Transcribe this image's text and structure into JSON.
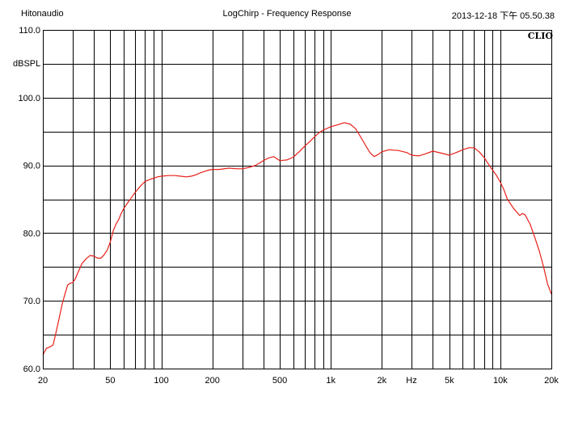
{
  "header": {
    "left": "Hitonaudio",
    "center": "LogChirp - Frequency Response",
    "right": "2013-12-18 下午 05.50.38"
  },
  "brand": {
    "label": "CLIO"
  },
  "colors": {
    "curve": "#e8201a",
    "grid": "#000000",
    "background": "#ffffff"
  },
  "chart_data": {
    "type": "line",
    "title": "LogChirp - Frequency Response",
    "xlabel": "Hz",
    "ylabel": "dBSPL",
    "xscale": "log",
    "xlim": [
      20,
      20000
    ],
    "ylim": [
      60,
      110
    ],
    "grid": true,
    "x_ticks": [
      {
        "value": 20,
        "label": "20"
      },
      {
        "value": 50,
        "label": "50"
      },
      {
        "value": 100,
        "label": "100"
      },
      {
        "value": 200,
        "label": "200"
      },
      {
        "value": 500,
        "label": "500"
      },
      {
        "value": 1000,
        "label": "1k"
      },
      {
        "value": 2000,
        "label": "2k"
      },
      {
        "value": 5000,
        "label": "5k"
      },
      {
        "value": 10000,
        "label": "10k"
      },
      {
        "value": 20000,
        "label": "20k"
      }
    ],
    "y_ticks": [
      {
        "value": 60,
        "label": "60.0"
      },
      {
        "value": 70,
        "label": "70.0"
      },
      {
        "value": 80,
        "label": "80.0"
      },
      {
        "value": 90,
        "label": "90.0"
      },
      {
        "value": 100,
        "label": "100.0"
      },
      {
        "value": 110,
        "label": "110.0"
      }
    ],
    "series": [
      {
        "x": [
          20,
          21,
          22,
          23,
          24,
          25,
          26,
          27,
          28,
          29,
          30,
          31,
          32,
          34,
          36,
          38,
          40,
          42,
          44,
          46,
          48,
          50,
          52,
          54,
          56,
          58,
          60,
          63,
          66,
          70,
          75,
          80,
          85,
          90,
          95,
          100,
          110,
          120,
          130,
          140,
          150,
          160,
          170,
          180,
          190,
          200,
          220,
          250,
          280,
          300,
          330,
          360,
          400,
          430,
          460,
          500,
          550,
          600,
          650,
          700,
          750,
          800,
          850,
          900,
          1000,
          1100,
          1200,
          1300,
          1400,
          1500,
          1600,
          1700,
          1800,
          1900,
          2000,
          2200,
          2500,
          2800,
          3000,
          3300,
          3600,
          4000,
          4500,
          5000,
          5500,
          6000,
          6500,
          7000,
          7500,
          8000,
          8500,
          9000,
          9500,
          10000,
          10500,
          11000,
          12000,
          13000,
          13500,
          14000,
          15000,
          16000,
          17000,
          18000,
          19000,
          20000
        ],
        "y": [
          62.0,
          63.0,
          63.2,
          63.5,
          65.5,
          67.5,
          69.5,
          71.0,
          72.3,
          72.6,
          72.7,
          73.2,
          74.0,
          75.5,
          76.2,
          76.7,
          76.6,
          76.3,
          76.3,
          76.8,
          77.5,
          78.7,
          80.3,
          81.3,
          82.0,
          82.9,
          83.6,
          84.4,
          85.1,
          86.0,
          86.9,
          87.6,
          87.9,
          88.1,
          88.3,
          88.4,
          88.5,
          88.5,
          88.4,
          88.3,
          88.4,
          88.6,
          88.9,
          89.1,
          89.3,
          89.4,
          89.4,
          89.6,
          89.5,
          89.5,
          89.7,
          90.0,
          90.7,
          91.1,
          91.3,
          90.7,
          90.8,
          91.2,
          92.0,
          92.8,
          93.5,
          94.2,
          94.8,
          95.2,
          95.7,
          96.0,
          96.3,
          96.1,
          95.4,
          94.2,
          93.0,
          91.9,
          91.3,
          91.6,
          92.0,
          92.3,
          92.2,
          91.9,
          91.5,
          91.4,
          91.7,
          92.1,
          91.8,
          91.5,
          91.9,
          92.3,
          92.6,
          92.6,
          92.0,
          91.2,
          90.2,
          89.3,
          88.5,
          87.5,
          86.4,
          85.0,
          83.6,
          82.6,
          82.9,
          82.7,
          81.3,
          79.3,
          77.3,
          75.0,
          72.5,
          71.0
        ]
      }
    ]
  }
}
